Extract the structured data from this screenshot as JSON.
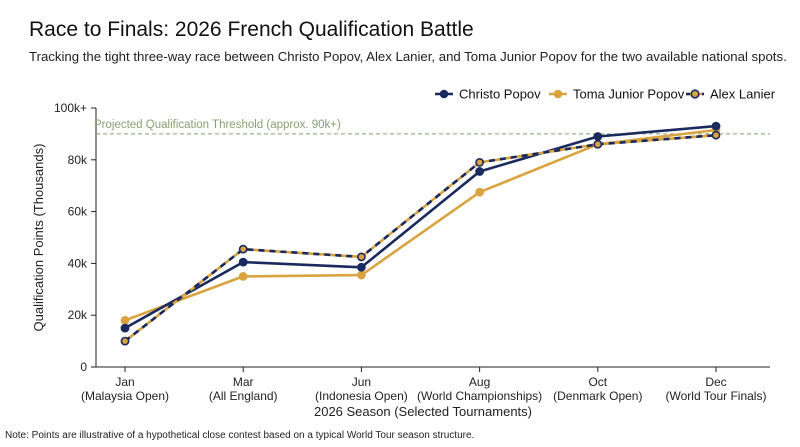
{
  "header": {
    "title": "Race to Finals: 2026 French Qualification Battle",
    "subtitle": "Tracking the tight three-way race between Christo Popov, Alex Lanier, and Toma Junior Popov for the two available national spots."
  },
  "footer": {
    "note": "Note: Points are illustrative of a hypothetical close contest based on a typical World Tour season structure."
  },
  "colors": {
    "navy": "#1b2a5e",
    "gold": "#d9a440",
    "threshold": "#8aa071",
    "axis": "#222222"
  },
  "chart_data": {
    "type": "line",
    "categories": [
      [
        "Jan",
        "(Malaysia Open)"
      ],
      [
        "Mar",
        "(All England)"
      ],
      [
        "Jun",
        "(Indonesia Open)"
      ],
      [
        "Aug",
        "(World Championships)"
      ],
      [
        "Oct",
        "(Denmark Open)"
      ],
      [
        "Dec",
        "(World Tour Finals)"
      ]
    ],
    "xlabel": "2026 Season (Selected Tournaments)",
    "ylabel": "Qualification Points (Thousands)",
    "ylim": [
      0,
      100000
    ],
    "yticks": [
      {
        "value": 0,
        "label": "0"
      },
      {
        "value": 20000,
        "label": "20k"
      },
      {
        "value": 40000,
        "label": "40k"
      },
      {
        "value": 60000,
        "label": "60k"
      },
      {
        "value": 80000,
        "label": "80k"
      },
      {
        "value": 100000,
        "label": "100k+"
      }
    ],
    "threshold": {
      "value": 90000,
      "label": "Projected Qualification Threshold (approx. 90k+)",
      "color": "#8aa071"
    },
    "series": [
      {
        "name": "Christo Popov",
        "values": [
          15000,
          40500,
          38500,
          75500,
          89000,
          93000
        ],
        "style": "solid-navy"
      },
      {
        "name": "Toma Junior Popov",
        "values": [
          18000,
          35000,
          35500,
          67500,
          86000,
          91500
        ],
        "style": "solid-gold"
      },
      {
        "name": "Alex Lanier",
        "values": [
          10000,
          45500,
          42500,
          79000,
          86000,
          89500
        ],
        "style": "dashed-navy-gold"
      }
    ],
    "legend": "top-right",
    "grid": false
  }
}
